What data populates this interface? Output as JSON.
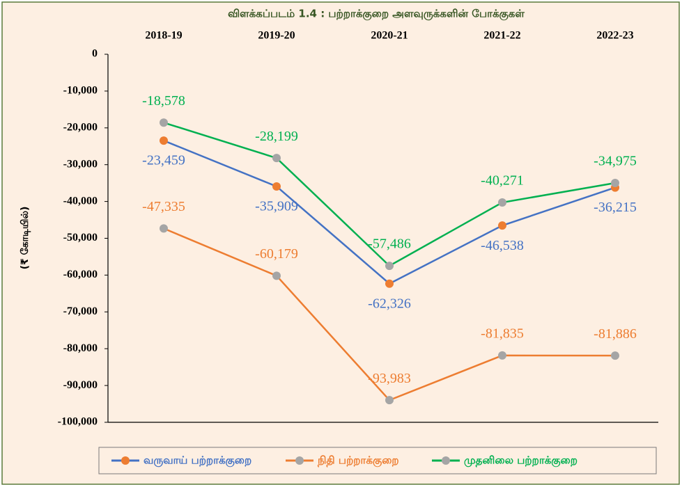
{
  "chart_data": {
    "type": "line",
    "title": "விளக்கப்படம் 1.4 : பற்றாக்குறை அளவுருக்களின் போக்குகள்",
    "y_label": "(₹ கோடியில்)",
    "categories": [
      "2018-19",
      "2019-20",
      "2020-21",
      "2021-22",
      "2022-23"
    ],
    "series": [
      {
        "name": "வருவாய் பற்றாக்குறை",
        "color": "#4472c4",
        "marker_color": "#ed7d31",
        "values": [
          -23459,
          -35909,
          -62326,
          -46538,
          -36215
        ],
        "value_labels": [
          "-23,459",
          "-35,909",
          "-62,326",
          "-46,538",
          "-36,215"
        ]
      },
      {
        "name": "நிதி பற்றாக்குறை",
        "color": "#ed7d31",
        "marker_color": "#a5a5a5",
        "values": [
          -47335,
          -60179,
          -93983,
          -81835,
          -81886
        ],
        "value_labels": [
          "-47,335",
          "-60,179",
          "-93,983",
          "-81,835",
          "-81,886"
        ]
      },
      {
        "name": "முதனிலை பற்றாக்குறை",
        "color": "#00b050",
        "marker_color": "#a5a5a5",
        "values": [
          -18578,
          -28199,
          -57486,
          -40271,
          -34975
        ],
        "value_labels": [
          "-18,578",
          "-28,199",
          "-57,486",
          "-40,271",
          "-34,975"
        ]
      }
    ],
    "ylim": [
      -100000,
      0
    ],
    "yticks": [
      {
        "value": 0,
        "label": "0"
      },
      {
        "value": -10000,
        "label": "-10,000"
      },
      {
        "value": -20000,
        "label": "-20,000"
      },
      {
        "value": -30000,
        "label": "-30,000"
      },
      {
        "value": -40000,
        "label": "-40,000"
      },
      {
        "value": -50000,
        "label": "-50,000"
      },
      {
        "value": -60000,
        "label": "-60,000"
      },
      {
        "value": -70000,
        "label": "-70,000"
      },
      {
        "value": -80000,
        "label": "-80,000"
      },
      {
        "value": -90000,
        "label": "-90,000"
      },
      {
        "value": -100000,
        "label": "-100,000"
      }
    ],
    "legend": "bottom"
  }
}
